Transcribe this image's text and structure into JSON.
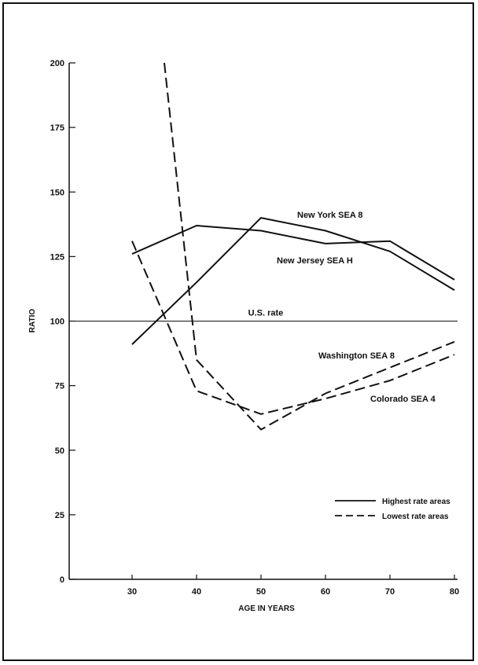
{
  "chart_data": {
    "type": "line",
    "title": "",
    "xlabel": "AGE IN YEARS",
    "ylabel": "RATIO",
    "xlim": [
      20,
      80
    ],
    "ylim": [
      0,
      200
    ],
    "xticks": [
      30,
      40,
      50,
      60,
      70,
      80
    ],
    "yticks": [
      0,
      25,
      50,
      75,
      100,
      125,
      150,
      175,
      200
    ],
    "grid": false,
    "reference_line": {
      "label": "U.S. rate",
      "y": 100
    },
    "series": [
      {
        "name": "New York SEA 8",
        "group": "highest",
        "style": "solid",
        "x": [
          30,
          40,
          50,
          60,
          70,
          80
        ],
        "y": [
          91,
          115,
          140,
          135,
          127,
          112
        ]
      },
      {
        "name": "New Jersey SEA H",
        "group": "highest",
        "style": "solid",
        "x": [
          30,
          40,
          50,
          60,
          70,
          80
        ],
        "y": [
          126,
          137,
          135,
          130,
          131,
          116
        ]
      },
      {
        "name": "Washington SEA 8",
        "group": "lowest",
        "style": "dashed",
        "x": [
          35,
          40,
          50,
          60,
          70,
          80
        ],
        "y": [
          200,
          85,
          58,
          72,
          82,
          92
        ]
      },
      {
        "name": "Colorado SEA 4",
        "group": "lowest",
        "style": "dashed",
        "x": [
          30,
          40,
          50,
          60,
          70,
          80
        ],
        "y": [
          131,
          73,
          64,
          70,
          77,
          87
        ]
      }
    ],
    "legend": {
      "placement": "bottom-right",
      "entries": [
        {
          "label": "Highest rate areas",
          "style": "solid"
        },
        {
          "label": "Lowest rate areas",
          "style": "dashed"
        }
      ]
    }
  }
}
